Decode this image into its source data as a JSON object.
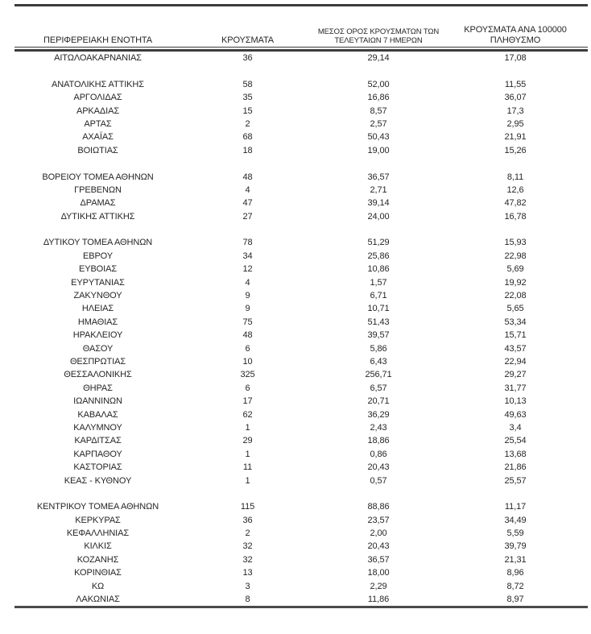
{
  "colors": {
    "text": "#262626",
    "rule": "#3d3d3d",
    "background": "#ffffff"
  },
  "table": {
    "columns": [
      {
        "label": "ΠΕΡΙΦΕΡΕΙΑΚΗ ΕΝΟΤΗΤΑ"
      },
      {
        "label": "ΚΡΟΥΣΜΑΤΑ"
      },
      {
        "label": "ΜΕΣΟΣ ΟΡΟΣ ΚΡΟΥΣΜΑΤΩΝ ΤΩΝ\nΤΕΛΕΥΤΑΙΩΝ 7 ΗΜΕΡΩΝ"
      },
      {
        "label": "ΚΡΟΥΣΜΑΤΑ ΑΝΑ 100000\nΠΛΗΘΥΣΜΟ"
      }
    ],
    "groups": [
      {
        "rows": [
          {
            "region": "ΑΙΤΩΛΟΑΚΑΡΝΑΝΙΑΣ",
            "cases": "36",
            "avg7": "29,14",
            "per100k": "17,08"
          }
        ]
      },
      {
        "rows": [
          {
            "region": "ΑΝΑΤΟΛΙΚΗΣ ΑΤΤΙΚΗΣ",
            "cases": "58",
            "avg7": "52,00",
            "per100k": "11,55"
          },
          {
            "region": "ΑΡΓΟΛΙΔΑΣ",
            "cases": "35",
            "avg7": "16,86",
            "per100k": "36,07"
          },
          {
            "region": "ΑΡΚΑΔΙΑΣ",
            "cases": "15",
            "avg7": "8,57",
            "per100k": "17,3"
          },
          {
            "region": "ΑΡΤΑΣ",
            "cases": "2",
            "avg7": "2,57",
            "per100k": "2,95"
          },
          {
            "region": "ΑΧΑΪΑΣ",
            "cases": "68",
            "avg7": "50,43",
            "per100k": "21,91"
          },
          {
            "region": "ΒΟΙΩΤΙΑΣ",
            "cases": "18",
            "avg7": "19,00",
            "per100k": "15,26"
          }
        ]
      },
      {
        "rows": [
          {
            "region": "ΒΟΡΕΙΟΥ ΤΟΜΕΑ ΑΘΗΝΩΝ",
            "cases": "48",
            "avg7": "36,57",
            "per100k": "8,11"
          },
          {
            "region": "ΓΡΕΒΕΝΩΝ",
            "cases": "4",
            "avg7": "2,71",
            "per100k": "12,6"
          },
          {
            "region": "ΔΡΑΜΑΣ",
            "cases": "47",
            "avg7": "39,14",
            "per100k": "47,82"
          },
          {
            "region": "ΔΥΤΙΚΗΣ ΑΤΤΙΚΗΣ",
            "cases": "27",
            "avg7": "24,00",
            "per100k": "16,78"
          }
        ]
      },
      {
        "rows": [
          {
            "region": "ΔΥΤΙΚΟΥ ΤΟΜΕΑ ΑΘΗΝΩΝ",
            "cases": "78",
            "avg7": "51,29",
            "per100k": "15,93"
          },
          {
            "region": "ΕΒΡΟΥ",
            "cases": "34",
            "avg7": "25,86",
            "per100k": "22,98"
          },
          {
            "region": "ΕΥΒΟΙΑΣ",
            "cases": "12",
            "avg7": "10,86",
            "per100k": "5,69"
          },
          {
            "region": "ΕΥΡΥΤΑΝΙΑΣ",
            "cases": "4",
            "avg7": "1,57",
            "per100k": "19,92"
          },
          {
            "region": "ΖΑΚΥΝΘΟΥ",
            "cases": "9",
            "avg7": "6,71",
            "per100k": "22,08"
          },
          {
            "region": "ΗΛΕΙΑΣ",
            "cases": "9",
            "avg7": "10,71",
            "per100k": "5,65"
          },
          {
            "region": "ΗΜΑΘΙΑΣ",
            "cases": "75",
            "avg7": "51,43",
            "per100k": "53,34"
          },
          {
            "region": "ΗΡΑΚΛΕΙΟΥ",
            "cases": "48",
            "avg7": "39,57",
            "per100k": "15,71"
          },
          {
            "region": "ΘΑΣΟΥ",
            "cases": "6",
            "avg7": "5,86",
            "per100k": "43,57"
          },
          {
            "region": "ΘΕΣΠΡΩΤΙΑΣ",
            "cases": "10",
            "avg7": "6,43",
            "per100k": "22,94"
          },
          {
            "region": "ΘΕΣΣΑΛΟΝΙΚΗΣ",
            "cases": "325",
            "avg7": "256,71",
            "per100k": "29,27"
          },
          {
            "region": "ΘΗΡΑΣ",
            "cases": "6",
            "avg7": "6,57",
            "per100k": "31,77"
          },
          {
            "region": "ΙΩΑΝΝΙΝΩΝ",
            "cases": "17",
            "avg7": "20,71",
            "per100k": "10,13"
          },
          {
            "region": "ΚΑΒΑΛΑΣ",
            "cases": "62",
            "avg7": "36,29",
            "per100k": "49,63"
          },
          {
            "region": "ΚΑΛΥΜΝΟΥ",
            "cases": "1",
            "avg7": "2,43",
            "per100k": "3,4"
          },
          {
            "region": "ΚΑΡΔΙΤΣΑΣ",
            "cases": "29",
            "avg7": "18,86",
            "per100k": "25,54"
          },
          {
            "region": "ΚΑΡΠΑΘΟΥ",
            "cases": "1",
            "avg7": "0,86",
            "per100k": "13,68"
          },
          {
            "region": "ΚΑΣΤΟΡΙΑΣ",
            "cases": "11",
            "avg7": "20,43",
            "per100k": "21,86"
          },
          {
            "region": "ΚΕΑΣ - ΚΥΘΝΟΥ",
            "cases": "1",
            "avg7": "0,57",
            "per100k": "25,57"
          }
        ]
      },
      {
        "rows": [
          {
            "region": "ΚΕΝΤΡΙΚΟΥ ΤΟΜΕΑ ΑΘΗΝΩΝ",
            "cases": "115",
            "avg7": "88,86",
            "per100k": "11,17"
          },
          {
            "region": "ΚΕΡΚΥΡΑΣ",
            "cases": "36",
            "avg7": "23,57",
            "per100k": "34,49"
          },
          {
            "region": "ΚΕΦΑΛΛΗΝΙΑΣ",
            "cases": "2",
            "avg7": "2,00",
            "per100k": "5,59"
          },
          {
            "region": "ΚΙΛΚΙΣ",
            "cases": "32",
            "avg7": "20,43",
            "per100k": "39,79"
          },
          {
            "region": "ΚΟΖΑΝΗΣ",
            "cases": "32",
            "avg7": "36,57",
            "per100k": "21,31"
          },
          {
            "region": "ΚΟΡΙΝΘΙΑΣ",
            "cases": "13",
            "avg7": "18,00",
            "per100k": "8,96"
          },
          {
            "region": "ΚΩ",
            "cases": "3",
            "avg7": "2,29",
            "per100k": "8,72"
          },
          {
            "region": "ΛΑΚΩΝΙΑΣ",
            "cases": "8",
            "avg7": "11,86",
            "per100k": "8,97"
          }
        ]
      }
    ]
  }
}
